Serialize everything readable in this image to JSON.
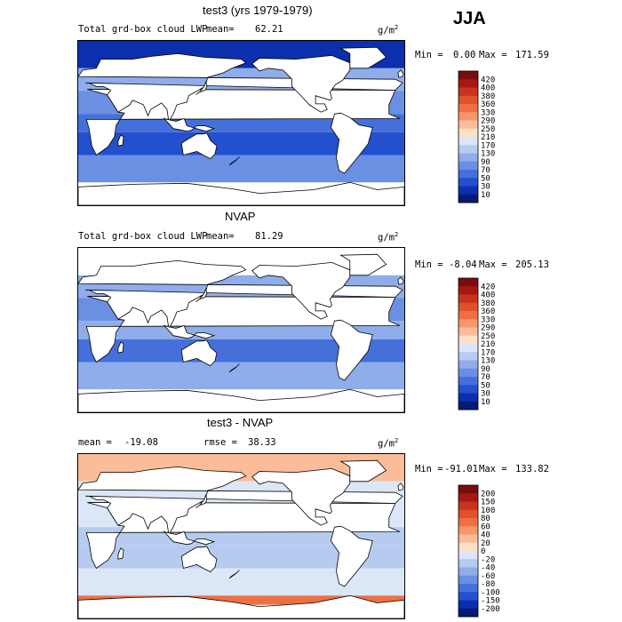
{
  "season": "JJA",
  "panels": [
    {
      "title": "test3 (yrs 1979-1979)",
      "variable": "Total grd-box cloud LWP",
      "stat1_label": "mean=",
      "stat1_value": "62.21",
      "stat2_label": "",
      "stat2_value": "",
      "units": "g/m",
      "units_sup": "2",
      "min_label": "Min =",
      "min_value": "0.00",
      "max_label": "Max =",
      "max_value": "171.59",
      "colorbar_labels": [
        "420",
        "400",
        "380",
        "360",
        "330",
        "290",
        "250",
        "210",
        "170",
        "130",
        "90",
        "70",
        "50",
        "30",
        "10"
      ],
      "colorbar_colors": [
        "#7a0c0c",
        "#a31a12",
        "#c9321c",
        "#e0502c",
        "#ee7042",
        "#f6966a",
        "#fbbd99",
        "#fde0c8",
        "#dbe6f7",
        "#b7cbf1",
        "#8fadeb",
        "#6a8fe3",
        "#4570dc",
        "#2350cf",
        "#0b2fae",
        "#071a76"
      ]
    },
    {
      "title": "NVAP",
      "variable": "Total grd-box cloud LWP",
      "stat1_label": "mean=",
      "stat1_value": "81.29",
      "stat2_label": "",
      "stat2_value": "",
      "units": "g/m",
      "units_sup": "2",
      "min_label": "Min =",
      "min_value": "-8.04",
      "max_label": "Max =",
      "max_value": "205.13",
      "colorbar_labels": [
        "420",
        "400",
        "380",
        "360",
        "330",
        "290",
        "250",
        "210",
        "170",
        "130",
        "90",
        "70",
        "50",
        "30",
        "10"
      ],
      "colorbar_colors": [
        "#7a0c0c",
        "#a31a12",
        "#c9321c",
        "#e0502c",
        "#ee7042",
        "#f6966a",
        "#fbbd99",
        "#fde0c8",
        "#dbe6f7",
        "#b7cbf1",
        "#8fadeb",
        "#6a8fe3",
        "#4570dc",
        "#2350cf",
        "#0b2fae",
        "#071a76"
      ]
    },
    {
      "title": "test3 - NVAP",
      "variable": "",
      "stat1_label": "mean =",
      "stat1_value": "-19.08",
      "stat2_label": "rmse =",
      "stat2_value": "38.33",
      "units": "g/m",
      "units_sup": "2",
      "min_label": "Min =",
      "min_value": "-91.01",
      "max_label": "Max =",
      "max_value": "133.82",
      "colorbar_labels": [
        "200",
        "150",
        "100",
        "80",
        "60",
        "40",
        "20",
        "0",
        "-20",
        "-40",
        "-60",
        "-80",
        "-100",
        "-150",
        "-200"
      ],
      "colorbar_colors": [
        "#7a0c0c",
        "#a31a12",
        "#c9321c",
        "#e0502c",
        "#ee7042",
        "#f6966a",
        "#fbbd99",
        "#fde0c8",
        "#dbe6f7",
        "#b7cbf1",
        "#8fadeb",
        "#6a8fe3",
        "#4570dc",
        "#2350cf",
        "#0b2fae",
        "#071a76"
      ]
    }
  ],
  "chart_data": [
    {
      "type": "heatmap",
      "title": "test3 (yrs 1979-1979)",
      "variable": "Total grd-box cloud LWP",
      "units": "g/m^2",
      "mean": 62.21,
      "min": 0.0,
      "max": 171.59,
      "colorbar_levels": [
        10,
        30,
        50,
        70,
        90,
        130,
        170,
        210,
        250,
        290,
        330,
        360,
        380,
        400,
        420
      ],
      "zonal_bands": [
        {
          "lat_range": [
            60,
            90
          ],
          "value": 20
        },
        {
          "lat_range": [
            35,
            60
          ],
          "value": 110
        },
        {
          "lat_range": [
            10,
            35
          ],
          "value": 70
        },
        {
          "lat_range": [
            -10,
            10
          ],
          "value": 60
        },
        {
          "lat_range": [
            -35,
            -10
          ],
          "value": 45
        },
        {
          "lat_range": [
            -65,
            -35
          ],
          "value": 80
        },
        {
          "lat_range": [
            -90,
            -65
          ],
          "value": 0
        }
      ]
    },
    {
      "type": "heatmap",
      "title": "NVAP",
      "variable": "Total grd-box cloud LWP",
      "units": "g/m^2",
      "mean": 81.29,
      "min": -8.04,
      "max": 205.13,
      "colorbar_levels": [
        10,
        30,
        50,
        70,
        90,
        130,
        170,
        210,
        250,
        290,
        330,
        360,
        380,
        400,
        420
      ],
      "zonal_bands": [
        {
          "lat_range": [
            60,
            90
          ],
          "value": 0
        },
        {
          "lat_range": [
            35,
            60
          ],
          "value": 120
        },
        {
          "lat_range": [
            10,
            35
          ],
          "value": 85
        },
        {
          "lat_range": [
            -10,
            10
          ],
          "value": 90
        },
        {
          "lat_range": [
            -35,
            -10
          ],
          "value": 65
        },
        {
          "lat_range": [
            -65,
            -35
          ],
          "value": 100
        },
        {
          "lat_range": [
            -90,
            -65
          ],
          "value": 0
        }
      ]
    },
    {
      "type": "heatmap",
      "title": "test3 - NVAP",
      "units": "g/m^2",
      "mean": -19.08,
      "rmse": 38.33,
      "min": -91.01,
      "max": 133.82,
      "colorbar_levels": [
        -200,
        -150,
        -100,
        -80,
        -60,
        -40,
        -20,
        0,
        20,
        40,
        60,
        80,
        100,
        150,
        200
      ],
      "zonal_bands": [
        {
          "lat_range": [
            60,
            90
          ],
          "value": 30
        },
        {
          "lat_range": [
            35,
            60
          ],
          "value": -10
        },
        {
          "lat_range": [
            10,
            35
          ],
          "value": -15
        },
        {
          "lat_range": [
            -10,
            10
          ],
          "value": -30
        },
        {
          "lat_range": [
            -35,
            -10
          ],
          "value": -25
        },
        {
          "lat_range": [
            -65,
            -35
          ],
          "value": -20
        },
        {
          "lat_range": [
            -75,
            -65
          ],
          "value": 60
        }
      ]
    }
  ]
}
